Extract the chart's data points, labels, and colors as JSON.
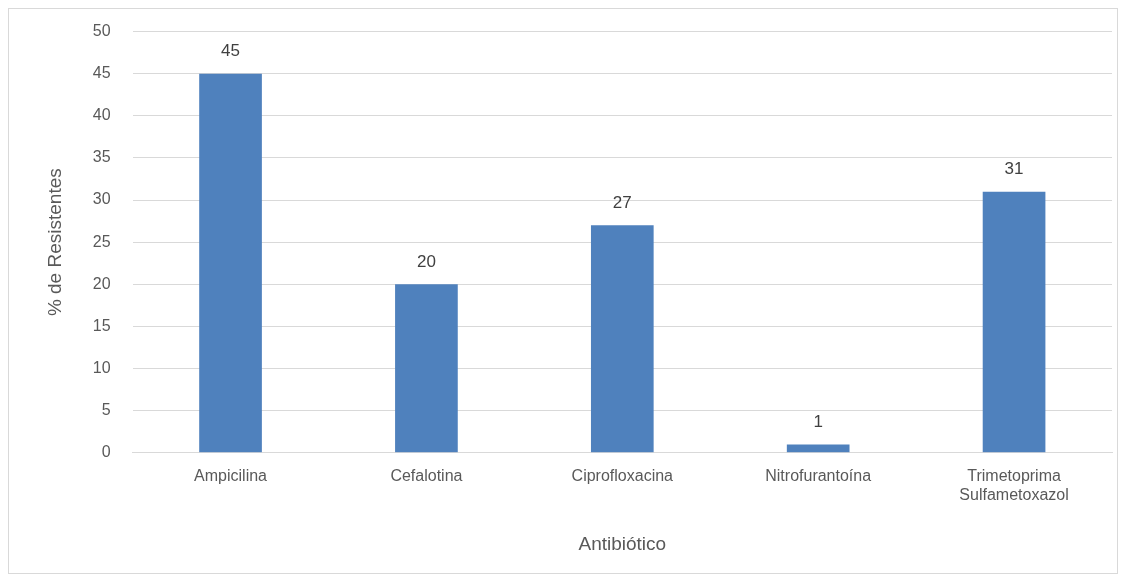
{
  "chart_data": {
    "type": "bar",
    "xlabel": "Antibiótico",
    "ylabel": "% de Resistentes",
    "categories": [
      "Ampicilina",
      "Cefalotina",
      "Ciprofloxacina",
      "Nitrofurantoína",
      "Trimetoprima Sulfametoxazol"
    ],
    "values": [
      45,
      20,
      27,
      1,
      31
    ],
    "color": "#4f81bd",
    "ylim": [
      0,
      50
    ],
    "yticks": [
      0,
      5,
      10,
      15,
      20,
      25,
      30,
      35,
      40,
      45,
      50
    ],
    "grid": "y",
    "legend": false,
    "data_labels": true
  }
}
